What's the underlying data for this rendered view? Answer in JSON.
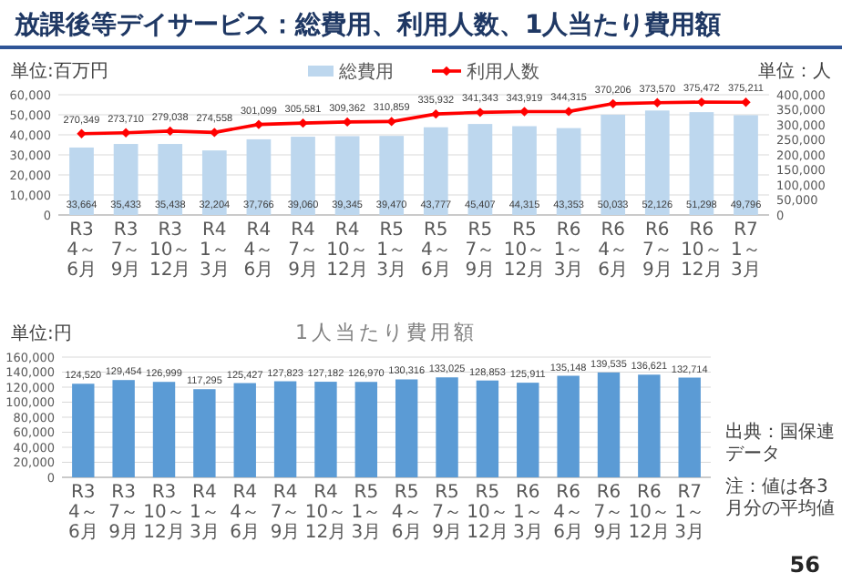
{
  "chart_data": [
    {
      "type": "bar",
      "title": "放課後等デイサービス：総費用、利用人数、1人当たり費用額",
      "ylabel": "単位:百万円",
      "y2label": "単位：人",
      "categories": [
        "R3 4～6月",
        "R3 7～9月",
        "R3 10～12月",
        "R4 1～3月",
        "R4 4～6月",
        "R4 7～9月",
        "R4 10～12月",
        "R5 1～3月",
        "R5 4～6月",
        "R5 7～9月",
        "R5 10～12月",
        "R6 1～3月",
        "R6 4～6月",
        "R6 7～9月",
        "R6 10～12月",
        "R7 1～3月"
      ],
      "series": [
        {
          "name": "総費用",
          "color": "#bdd7ee",
          "values": [
            33664,
            35433,
            35438,
            32204,
            37766,
            39060,
            39345,
            39470,
            43777,
            45407,
            44315,
            43353,
            50033,
            52126,
            51298,
            49796
          ],
          "value_labels": [
            "33,664",
            "35,433",
            "35,438",
            "32,204",
            "37,766",
            "39,060",
            "39,345",
            "39,470",
            "43,777",
            "45,407",
            "44,315",
            "43,353",
            "50,033",
            "52,126",
            "51,298",
            "49,796"
          ]
        },
        {
          "name": "利用人数",
          "type": "line",
          "axis": "y2",
          "color": "#ff0000",
          "values": [
            270349,
            273710,
            279038,
            274558,
            301099,
            305581,
            309362,
            310859,
            335932,
            341343,
            343919,
            344315,
            370206,
            373570,
            375472,
            375211
          ],
          "value_labels": [
            "270,349",
            "273,710",
            "279,038",
            "274,558",
            "301,099",
            "305,581",
            "309,362",
            "310,859",
            "335,932",
            "341,343",
            "343,919",
            "344,315",
            "370,206",
            "373,570",
            "375,472",
            "375,211"
          ]
        }
      ],
      "ylim": [
        0,
        60000
      ],
      "yticks": [
        0,
        {
          "value": 10000,
          "label": "10,000"
        },
        {
          "value": 20000,
          "label": "20,000"
        },
        {
          "value": 30000,
          "label": "30,000"
        },
        {
          "value": 40000,
          "label": "40,000"
        },
        {
          "value": 50000,
          "label": "50,000"
        },
        {
          "value": 60000,
          "label": "60,000"
        }
      ],
      "y2lim": [
        0,
        400000
      ],
      "y2ticks": [
        0,
        {
          "value": 50000,
          "label": "50,000"
        },
        {
          "value": 100000,
          "label": "100,000"
        },
        {
          "value": 150000,
          "label": "150,000"
        },
        {
          "value": 200000,
          "label": "200,000"
        },
        {
          "value": 250000,
          "label": "250,000"
        },
        {
          "value": 300000,
          "label": "300,000"
        },
        {
          "value": 350000,
          "label": "350,000"
        },
        {
          "value": 400000,
          "label": "400,000"
        }
      ],
      "grid": "y",
      "legend": "top",
      "marker": "diamond",
      "line_style": "solid"
    },
    {
      "type": "bar",
      "title": "1人当たり費用額",
      "ylabel": "単位:円",
      "categories": [
        "R3 4～6月",
        "R3 7～9月",
        "R3 10～12月",
        "R4 1～3月",
        "R4 4～6月",
        "R4 7～9月",
        "R4 10～12月",
        "R5 1～3月",
        "R5 4～6月",
        "R5 7～9月",
        "R5 10～12月",
        "R6 1～3月",
        "R6 4～6月",
        "R6 7～9月",
        "R6 10～12月",
        "R7 1～3月"
      ],
      "series": [
        {
          "color": "#5b9bd5",
          "values": [
            124520,
            129454,
            126999,
            117295,
            125427,
            127823,
            127182,
            126970,
            130316,
            133025,
            128853,
            125911,
            135148,
            139535,
            136621,
            132714
          ],
          "value_labels": [
            "124,520",
            "129,454",
            "126,999",
            "117,295",
            "125,427",
            "127,823",
            "127,182",
            "126,970",
            "130,316",
            "133,025",
            "128,853",
            "125,911",
            "135,148",
            "139,535",
            "136,621",
            "132,714"
          ]
        }
      ],
      "ylim": [
        0,
        160000
      ],
      "yticks": [
        0,
        {
          "value": 20000,
          "label": "20,000"
        },
        {
          "value": 40000,
          "label": "40,000"
        },
        {
          "value": 60000,
          "label": "60,000"
        },
        {
          "value": 80000,
          "label": "80,000"
        },
        {
          "value": 100000,
          "label": "100,000"
        },
        {
          "value": 120000,
          "label": "120,000"
        },
        {
          "value": 140000,
          "label": "140,000"
        },
        {
          "value": 160000,
          "label": "160,000"
        }
      ],
      "grid": "y",
      "annotations": [
        "出典：国保連データ",
        "注：値は各3月分の平均値",
        "56"
      ]
    }
  ]
}
